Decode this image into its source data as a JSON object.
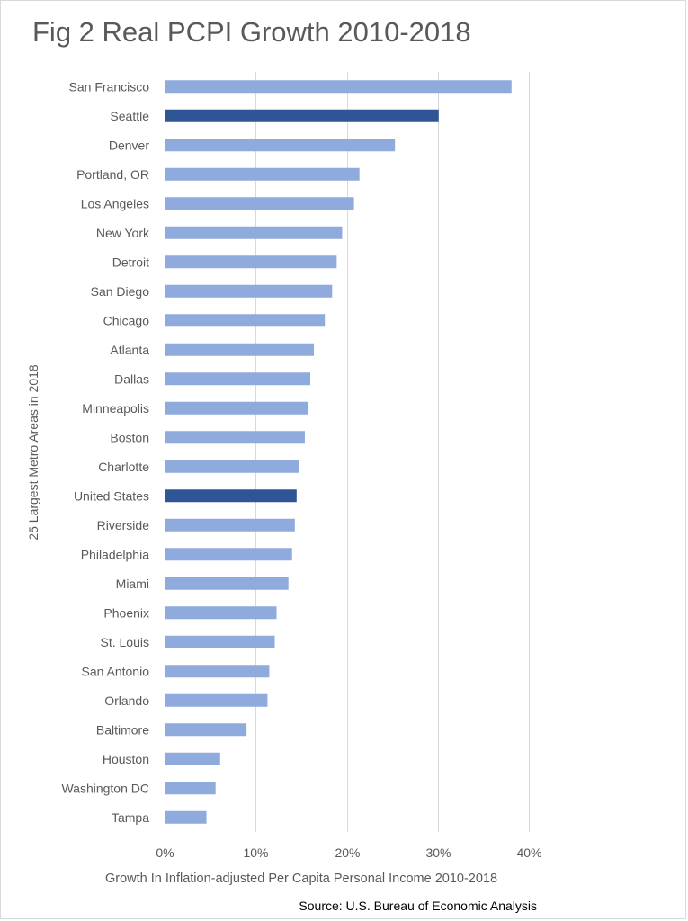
{
  "chart_data": {
    "type": "bar",
    "orientation": "horizontal",
    "title": "Fig 2 Real PCPI Growth 2010-2018",
    "ylabel": "25 Largest Metro Areas in 2018",
    "xlabel": "Growth In Inflation-adjusted Per Capita Personal Income 2010-2018",
    "source": "Source: U.S. Bureau of Economic Analysis",
    "categories": [
      "San Francisco",
      "Seattle",
      "Denver",
      "Portland, OR",
      "Los Angeles",
      "New York",
      "Detroit",
      "San Diego",
      "Chicago",
      "Atlanta",
      "Dallas",
      "Minneapolis",
      "Boston",
      "Charlotte",
      "United States",
      "Riverside",
      "Philadelphia",
      "Miami",
      "Phoenix",
      "St. Louis",
      "San Antonio",
      "Orlando",
      "Baltimore",
      "Houston",
      "Washington DC",
      "Tampa"
    ],
    "values": [
      38.1,
      30.1,
      25.3,
      21.4,
      20.8,
      19.5,
      18.9,
      18.4,
      17.6,
      16.4,
      16.0,
      15.8,
      15.4,
      14.8,
      14.5,
      14.3,
      14.0,
      13.6,
      12.3,
      12.1,
      11.5,
      11.3,
      9.0,
      6.1,
      5.6,
      4.6
    ],
    "highlighted": [
      "Seattle",
      "United States"
    ],
    "xlim": [
      0,
      40
    ],
    "xticks": [
      0,
      10,
      20,
      30,
      40
    ],
    "xtick_labels": [
      "0%",
      "10%",
      "20%",
      "30%",
      "40%"
    ],
    "grid": "vertical",
    "colors": {
      "bar": "#8faadc",
      "highlight": "#2f5597",
      "grid": "#d9d9d9",
      "text": "#595959"
    }
  }
}
